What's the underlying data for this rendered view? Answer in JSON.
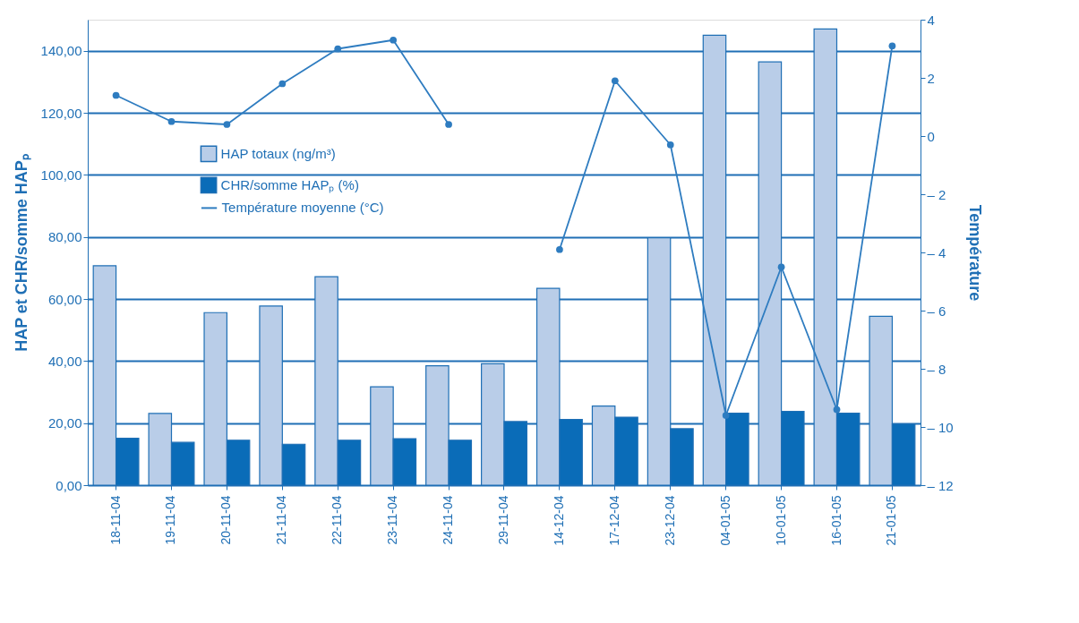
{
  "chart_data": {
    "type": "bar",
    "categories": [
      "18-11-04",
      "19-11-04",
      "20-11-04",
      "21-11-04",
      "22-11-04",
      "23-11-04",
      "24-11-04",
      "29-11-04",
      "14-12-04",
      "17-12-04",
      "23-12-04",
      "04-01-05",
      "10-01-05",
      "16-01-05",
      "21-01-05"
    ],
    "series": [
      {
        "name": "HAP totaux (ng/m³)",
        "color": "#b9cde8",
        "values": [
          70.7,
          23.1,
          55.6,
          57.7,
          67.2,
          31.7,
          38.5,
          39.1,
          63.4,
          25.5,
          79.7,
          145.0,
          136.4,
          147.0,
          54.4
        ]
      },
      {
        "name": "CHR/somme HAPₚ (%)",
        "color": "#0a6cb8",
        "values": [
          15.1,
          13.8,
          14.5,
          13.2,
          14.5,
          15.0,
          14.5,
          20.5,
          21.2,
          21.9,
          18.2,
          23.2,
          23.8,
          23.2,
          19.7
        ]
      },
      {
        "name": "Température moyenne (°C)",
        "type": "line",
        "axis": "y2",
        "color": "#2e7cc0",
        "values": [
          1.4,
          0.5,
          0.4,
          1.8,
          3.0,
          3.3,
          0.4,
          null,
          -3.9,
          1.9,
          -0.3,
          -9.6,
          -4.5,
          -9.4,
          3.1
        ]
      }
    ],
    "ylabel": "HAP et CHR/somme HAPₚ",
    "y2label": "Température",
    "ylim": [
      0,
      150
    ],
    "yticks": [
      {
        "value": 0,
        "label": "0,00"
      },
      {
        "value": 20,
        "label": "20,00"
      },
      {
        "value": 40,
        "label": "40,00"
      },
      {
        "value": 60,
        "label": "60,00"
      },
      {
        "value": 80,
        "label": "80,00"
      },
      {
        "value": 100,
        "label": "100,00"
      },
      {
        "value": 120,
        "label": "120,00"
      },
      {
        "value": 140,
        "label": "140,00"
      }
    ],
    "y2lim": [
      -12,
      4
    ],
    "y2ticks": [
      {
        "value": -12,
        "label": "– 12"
      },
      {
        "value": -10,
        "label": "– 10"
      },
      {
        "value": -8,
        "label": "– 8"
      },
      {
        "value": -6,
        "label": "– 6"
      },
      {
        "value": -4,
        "label": "– 4"
      },
      {
        "value": -2,
        "label": "– 2"
      },
      0,
      2,
      4
    ],
    "grid": "y",
    "legend": "top left",
    "marker": "circle",
    "line_style": "solid"
  }
}
